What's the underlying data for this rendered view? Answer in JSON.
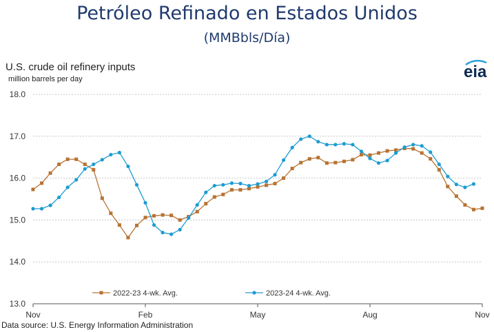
{
  "header": {
    "title": "Petróleo Refinado en Estados Unidos",
    "subtitle": "(MMBbls/Día)"
  },
  "chart_data": {
    "type": "line",
    "title": "U.S. crude oil refinery inputs",
    "subtitle": "million barrels per day",
    "source": "Data source: U.S. Energy Information Administration",
    "logo": "eia",
    "xlabel": "",
    "ylabel": "",
    "ylim": [
      13.0,
      18.0
    ],
    "y_ticks": [
      "13.0",
      "14.0",
      "15.0",
      "16.0",
      "17.0",
      "18.0"
    ],
    "x_ticks": [
      {
        "label": "Nov",
        "week": 0
      },
      {
        "label": "Feb",
        "week": 13
      },
      {
        "label": "May",
        "week": 26
      },
      {
        "label": "Aug",
        "week": 39
      },
      {
        "label": "Nov",
        "week": 52
      }
    ],
    "grid": true,
    "legend": "bottom",
    "series": [
      {
        "name": "2022-23  4-wk. Avg.",
        "color": "#b87333",
        "marker": "square",
        "values": [
          15.73,
          15.88,
          16.12,
          16.33,
          16.45,
          16.45,
          16.33,
          16.2,
          15.52,
          15.16,
          14.88,
          14.58,
          14.87,
          15.06,
          15.1,
          15.12,
          15.11,
          15.0,
          15.08,
          15.2,
          15.39,
          15.55,
          15.61,
          15.72,
          15.72,
          15.75,
          15.79,
          15.83,
          15.87,
          16.0,
          16.23,
          16.37,
          16.46,
          16.49,
          16.36,
          16.37,
          16.4,
          16.44,
          16.56,
          16.55,
          16.6,
          16.65,
          16.67,
          16.71,
          16.7,
          16.6,
          16.46,
          16.2,
          15.8,
          15.57,
          15.36,
          15.25,
          15.28
        ]
      },
      {
        "name": "2023-24  4-wk. Avg.",
        "color": "#1d9bd1",
        "marker": "circle",
        "values": [
          15.27,
          15.27,
          15.35,
          15.54,
          15.78,
          15.96,
          16.22,
          16.33,
          16.44,
          16.56,
          16.61,
          16.28,
          15.84,
          15.41,
          14.88,
          14.7,
          14.66,
          14.77,
          15.05,
          15.36,
          15.66,
          15.82,
          15.84,
          15.88,
          15.87,
          15.82,
          15.86,
          15.92,
          16.08,
          16.43,
          16.73,
          16.93,
          17.0,
          16.87,
          16.8,
          16.8,
          16.82,
          16.8,
          16.64,
          16.47,
          16.36,
          16.42,
          16.6,
          16.74,
          16.8,
          16.77,
          16.62,
          16.33,
          16.04,
          15.85,
          15.78,
          15.86
        ]
      }
    ]
  }
}
